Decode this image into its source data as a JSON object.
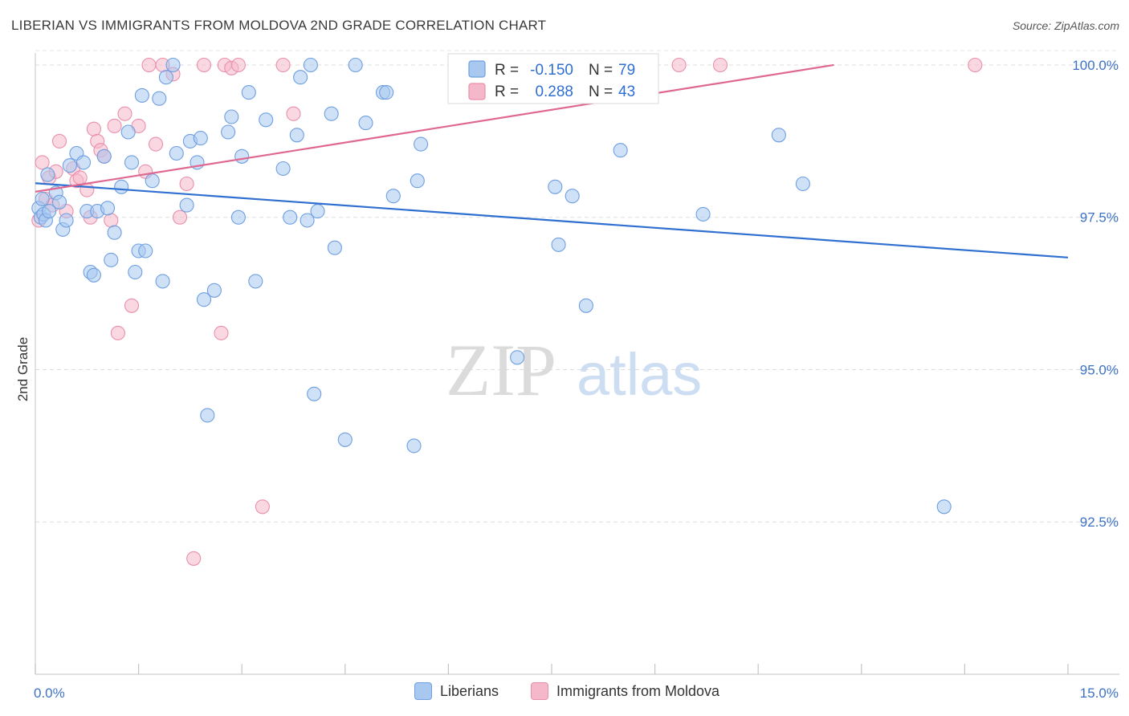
{
  "title": "LIBERIAN VS IMMIGRANTS FROM MOLDOVA 2ND GRADE CORRELATION CHART",
  "source": "Source: ZipAtlas.com",
  "watermark": {
    "zip": "ZIP",
    "atlas": "atlas"
  },
  "colors": {
    "blue_fill": "#a8c8f0",
    "blue_stroke": "#6f9fe0",
    "blue_line": "#2f6fd0",
    "pink_fill": "#f5b8cb",
    "pink_stroke": "#ea8fab",
    "pink_line": "#e06890",
    "axis_text": "#3d72c6",
    "grid": "#dddddd"
  },
  "legend": {
    "row1": {
      "r_label": "R =",
      "r_value": "-0.150",
      "n_label": "N =",
      "n_value": "79"
    },
    "row2": {
      "r_label": "R =",
      "r_value": "0.288",
      "n_label": "N =",
      "n_value": "43"
    }
  },
  "chart_data": {
    "type": "scatter",
    "xlabel": "",
    "ylabel": "2nd Grade",
    "xlim": [
      0.0,
      15.0
    ],
    "ylim": [
      90.0,
      100.25
    ],
    "x_tick_labels": [
      "0.0%",
      "15.0%"
    ],
    "y_ticks": [
      {
        "value": 100.0,
        "label": "100.0%"
      },
      {
        "value": 97.5,
        "label": "97.5%"
      },
      {
        "value": 95.0,
        "label": "95.0%"
      },
      {
        "value": 92.5,
        "label": "92.5%"
      }
    ],
    "grid": true,
    "legend_position": "top-center",
    "series": [
      {
        "name": "Liberians",
        "color": "#a8c8f0",
        "trend": {
          "x": [
            0.0,
            15.0
          ],
          "y": [
            98.06,
            96.84
          ]
        },
        "points": [
          [
            0.05,
            97.65
          ],
          [
            0.08,
            97.5
          ],
          [
            0.1,
            97.8
          ],
          [
            0.12,
            97.55
          ],
          [
            0.15,
            97.45
          ],
          [
            0.18,
            98.2
          ],
          [
            0.2,
            97.6
          ],
          [
            0.3,
            97.9
          ],
          [
            0.35,
            97.75
          ],
          [
            0.4,
            97.3
          ],
          [
            0.45,
            97.45
          ],
          [
            0.5,
            98.35
          ],
          [
            0.6,
            98.55
          ],
          [
            0.7,
            98.4
          ],
          [
            0.75,
            97.6
          ],
          [
            0.8,
            96.6
          ],
          [
            0.85,
            96.55
          ],
          [
            0.9,
            97.6
          ],
          [
            1.0,
            98.5
          ],
          [
            1.05,
            97.65
          ],
          [
            1.1,
            96.8
          ],
          [
            1.15,
            97.25
          ],
          [
            1.25,
            98.0
          ],
          [
            1.35,
            98.9
          ],
          [
            1.4,
            98.4
          ],
          [
            1.45,
            96.6
          ],
          [
            1.5,
            96.95
          ],
          [
            1.55,
            99.5
          ],
          [
            1.6,
            96.95
          ],
          [
            1.7,
            98.1
          ],
          [
            1.8,
            99.45
          ],
          [
            1.85,
            96.45
          ],
          [
            1.9,
            99.8
          ],
          [
            2.0,
            100.0
          ],
          [
            2.05,
            98.55
          ],
          [
            2.2,
            97.7
          ],
          [
            2.25,
            98.75
          ],
          [
            2.35,
            98.4
          ],
          [
            2.4,
            98.8
          ],
          [
            2.45,
            96.15
          ],
          [
            2.5,
            94.25
          ],
          [
            2.6,
            96.3
          ],
          [
            2.8,
            98.9
          ],
          [
            2.85,
            99.15
          ],
          [
            2.95,
            97.5
          ],
          [
            3.0,
            98.5
          ],
          [
            3.1,
            99.55
          ],
          [
            3.2,
            96.45
          ],
          [
            3.35,
            99.1
          ],
          [
            3.6,
            98.3
          ],
          [
            3.7,
            97.5
          ],
          [
            3.8,
            98.85
          ],
          [
            3.85,
            99.8
          ],
          [
            3.95,
            97.45
          ],
          [
            4.0,
            100.0
          ],
          [
            4.05,
            94.6
          ],
          [
            4.1,
            97.6
          ],
          [
            4.3,
            99.2
          ],
          [
            4.35,
            97.0
          ],
          [
            4.5,
            93.85
          ],
          [
            4.65,
            100.0
          ],
          [
            4.8,
            99.05
          ],
          [
            5.05,
            99.55
          ],
          [
            5.1,
            99.55
          ],
          [
            5.2,
            97.85
          ],
          [
            5.5,
            93.75
          ],
          [
            5.55,
            98.1
          ],
          [
            5.6,
            98.7
          ],
          [
            6.2,
            100.0
          ],
          [
            7.0,
            95.2
          ],
          [
            7.55,
            98.0
          ],
          [
            7.6,
            97.05
          ],
          [
            7.8,
            97.85
          ],
          [
            8.0,
            96.05
          ],
          [
            8.5,
            98.6
          ],
          [
            9.7,
            97.55
          ],
          [
            10.8,
            98.85
          ],
          [
            11.15,
            98.05
          ],
          [
            13.2,
            92.75
          ]
        ]
      },
      {
        "name": "Immigrants from Moldova",
        "color": "#f5b8cb",
        "trend": {
          "x": [
            0.0,
            11.6
          ],
          "y": [
            97.92,
            100.0
          ]
        },
        "points": [
          [
            0.05,
            97.45
          ],
          [
            0.1,
            98.4
          ],
          [
            0.15,
            97.8
          ],
          [
            0.2,
            98.15
          ],
          [
            0.25,
            97.7
          ],
          [
            0.3,
            98.25
          ],
          [
            0.35,
            98.75
          ],
          [
            0.45,
            97.6
          ],
          [
            0.55,
            98.3
          ],
          [
            0.6,
            98.1
          ],
          [
            0.65,
            98.15
          ],
          [
            0.75,
            97.95
          ],
          [
            0.8,
            97.5
          ],
          [
            0.85,
            98.95
          ],
          [
            0.9,
            98.75
          ],
          [
            0.95,
            98.6
          ],
          [
            1.0,
            98.5
          ],
          [
            1.1,
            97.45
          ],
          [
            1.15,
            99.0
          ],
          [
            1.2,
            95.6
          ],
          [
            1.3,
            99.2
          ],
          [
            1.4,
            96.05
          ],
          [
            1.5,
            99.0
          ],
          [
            1.6,
            98.25
          ],
          [
            1.65,
            100.0
          ],
          [
            1.75,
            98.7
          ],
          [
            1.85,
            100.0
          ],
          [
            2.0,
            99.85
          ],
          [
            2.1,
            97.5
          ],
          [
            2.2,
            98.05
          ],
          [
            2.3,
            91.9
          ],
          [
            2.45,
            100.0
          ],
          [
            2.7,
            95.6
          ],
          [
            2.75,
            100.0
          ],
          [
            2.85,
            99.95
          ],
          [
            2.95,
            100.0
          ],
          [
            3.3,
            92.75
          ],
          [
            3.6,
            100.0
          ],
          [
            3.75,
            99.2
          ],
          [
            8.0,
            100.0
          ],
          [
            9.35,
            100.0
          ],
          [
            9.95,
            100.0
          ],
          [
            13.65,
            100.0
          ]
        ]
      }
    ]
  },
  "bottom_legend": {
    "item1": "Liberians",
    "item2": "Immigrants from Moldova"
  }
}
